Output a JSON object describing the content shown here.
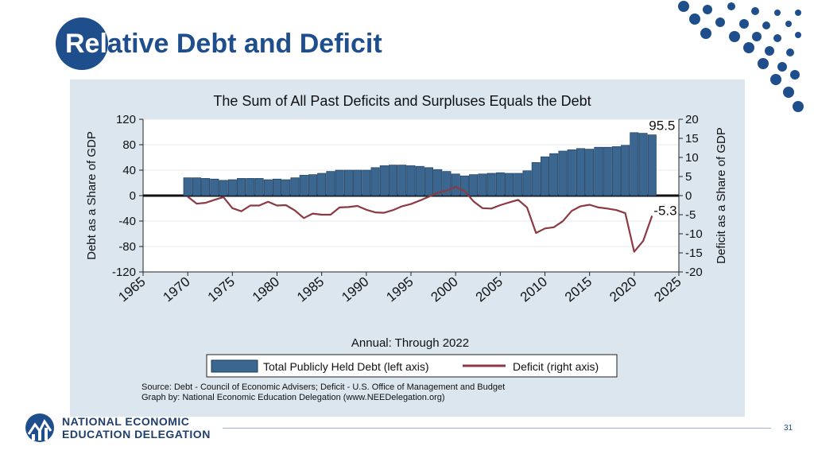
{
  "slide": {
    "title": "Relative Debt and Deficit",
    "org_line1": "NATIONAL ECONOMIC",
    "org_line2": "EDUCATION DELEGATION",
    "page_number": "31"
  },
  "colors": {
    "brand_blue": "#1f4e8c",
    "panel": "#dce6ef",
    "debt_bar": "#3a6690",
    "deficit_line": "#8b3a43"
  },
  "chart_data": {
    "type": "bar",
    "title": "The Sum of All Past Deficits and Surpluses Equals the Debt",
    "xlabel": "Annual: Through 2022",
    "ylabel_left": "Debt as a Share of GDP",
    "ylabel_right": "Deficit as a Share of GDP",
    "xlim": [
      1965,
      2025
    ],
    "ylim_left": [
      -120,
      120
    ],
    "ylim_right": [
      -20,
      20
    ],
    "x_ticks": [
      "1965",
      "1970",
      "1975",
      "1980",
      "1985",
      "1990",
      "1995",
      "2000",
      "2005",
      "2010",
      "2015",
      "2020",
      "2025"
    ],
    "y_ticks_left": [
      "120",
      "80",
      "40",
      "0",
      "-40",
      "-80",
      "-120"
    ],
    "y_ticks_right": [
      "20",
      "15",
      "10",
      "5",
      "0",
      "-5",
      "-10",
      "-15",
      "-20"
    ],
    "grid": true,
    "legend_position": "bottom",
    "years": [
      1970,
      1971,
      1972,
      1973,
      1974,
      1975,
      1976,
      1977,
      1978,
      1979,
      1980,
      1981,
      1982,
      1983,
      1984,
      1985,
      1986,
      1987,
      1988,
      1989,
      1990,
      1991,
      1992,
      1993,
      1994,
      1995,
      1996,
      1997,
      1998,
      1999,
      2000,
      2001,
      2002,
      2003,
      2004,
      2005,
      2006,
      2007,
      2008,
      2009,
      2010,
      2011,
      2012,
      2013,
      2014,
      2015,
      2016,
      2017,
      2018,
      2019,
      2020,
      2021,
      2022
    ],
    "series": [
      {
        "name": "Total Publicly Held Debt (left axis)",
        "axis": "left",
        "kind": "bar",
        "values": [
          28,
          28,
          27,
          26,
          24,
          25,
          27,
          27,
          27,
          25,
          26,
          25,
          28,
          32,
          33,
          35,
          38,
          40,
          40,
          40,
          40,
          44,
          47,
          48,
          48,
          47,
          46,
          44,
          41,
          38,
          34,
          31,
          33,
          34,
          35,
          36,
          35,
          35,
          39,
          52,
          61,
          66,
          70,
          72,
          74,
          73,
          76,
          76,
          77,
          79,
          99,
          98,
          95.5
        ]
      },
      {
        "name": "Deficit (right axis)",
        "axis": "right",
        "kind": "line",
        "values": [
          -0.3,
          -2.1,
          -1.9,
          -1.1,
          -0.4,
          -3.3,
          -4.1,
          -2.6,
          -2.6,
          -1.6,
          -2.6,
          -2.5,
          -3.9,
          -5.9,
          -4.7,
          -5.0,
          -5.0,
          -3.1,
          -3.0,
          -2.7,
          -3.7,
          -4.4,
          -4.5,
          -3.8,
          -2.8,
          -2.2,
          -1.3,
          -0.3,
          0.8,
          1.3,
          2.3,
          1.2,
          -1.5,
          -3.3,
          -3.4,
          -2.5,
          -1.8,
          -1.1,
          -3.1,
          -9.8,
          -8.6,
          -8.3,
          -6.7,
          -4.0,
          -2.8,
          -2.4,
          -3.1,
          -3.4,
          -3.8,
          -4.6,
          -14.7,
          -11.9,
          -5.3
        ]
      }
    ],
    "annotations": [
      "95.5",
      "-5.3"
    ],
    "source_lines": [
      "Source: Debt - Council of Economic Advisers; Deficit - U.S. Office of Management and Budget",
      "Graph by: National Economic Education Delegation (www.NEEDelegation.org)"
    ]
  }
}
